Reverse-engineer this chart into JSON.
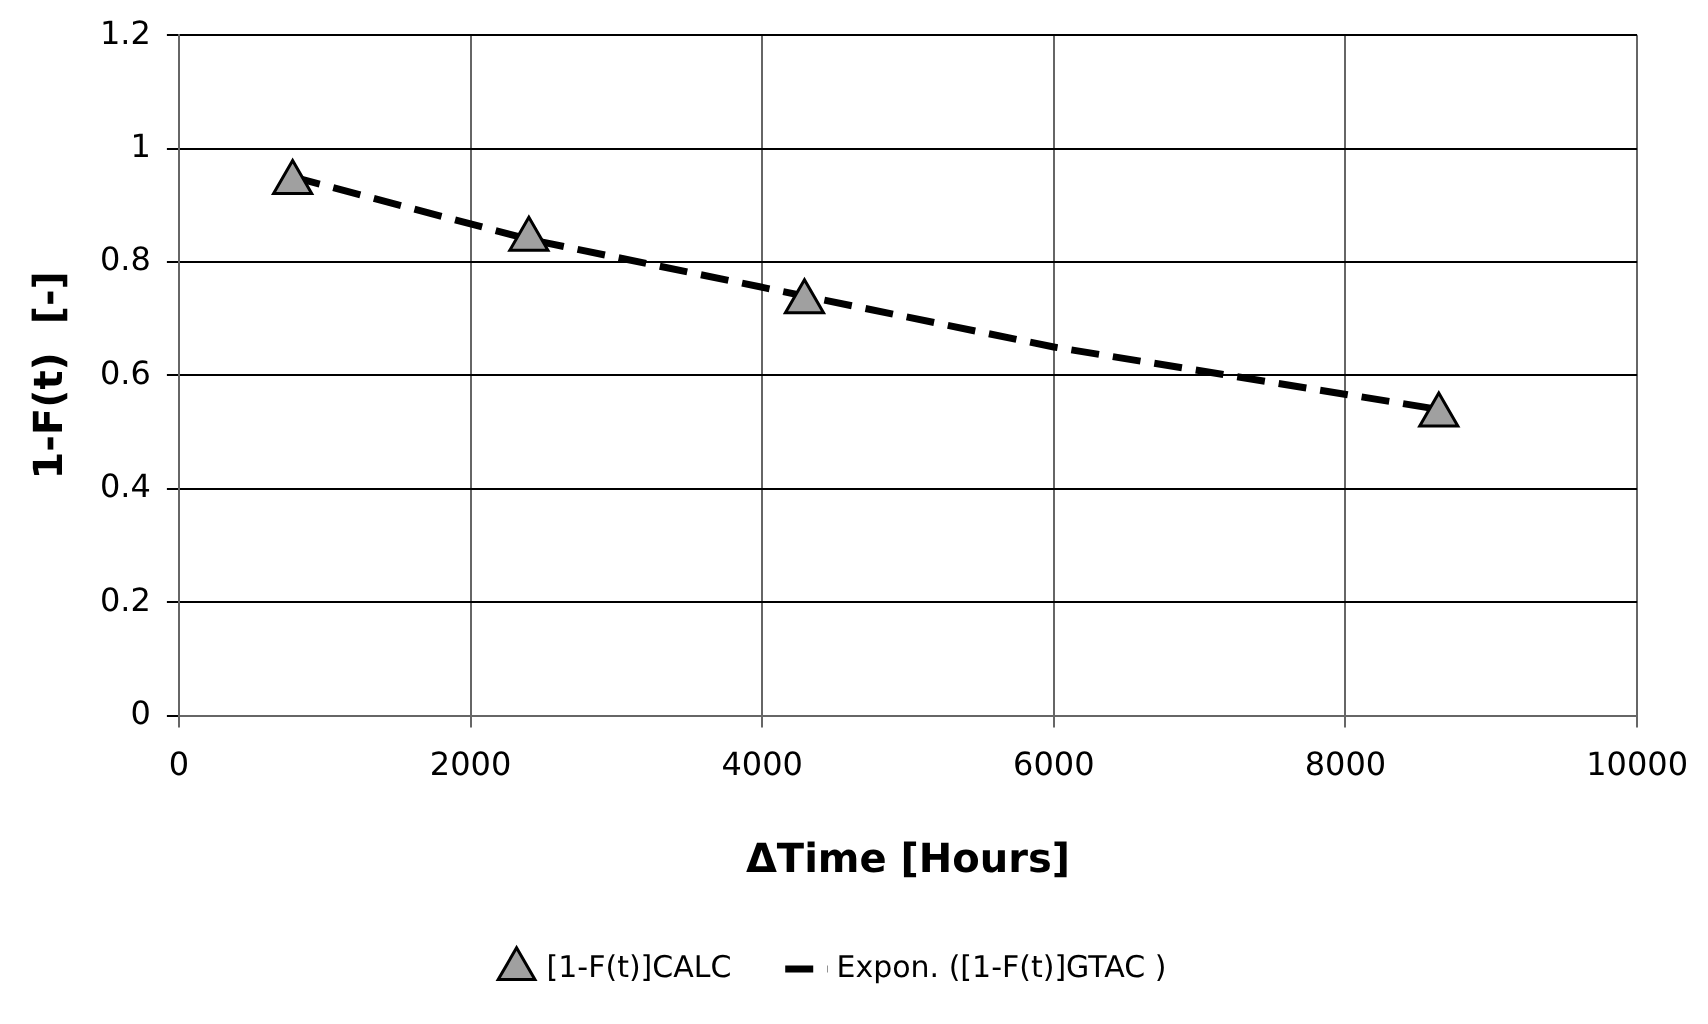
{
  "chart_data": {
    "type": "scatter",
    "xlabel": "ΔTime [Hours]",
    "ylabel": "1-F(t)  [-]",
    "xlim": [
      0,
      10000
    ],
    "xticks": [
      0,
      2000,
      4000,
      6000,
      8000,
      10000
    ],
    "ylim": [
      0,
      1.2
    ],
    "yticks": [
      0,
      0.2,
      0.4,
      0.6,
      0.8,
      1,
      1.2
    ],
    "grid": true,
    "legend": "bottom",
    "series": [
      {
        "name": "[1-F(t)]CALC",
        "type": "scatter",
        "color": "#a0a0a0",
        "marker": "triangle",
        "x": [
          780,
          2400,
          4290,
          8640
        ],
        "values": [
          0.94,
          0.84,
          0.73,
          0.53
        ]
      },
      {
        "name": "Expon. ([1-F(t)]GTAC )",
        "type": "line",
        "color": "#000000",
        "line_style": "dashed",
        "marker": "none",
        "x": [
          780,
          2400,
          4290,
          6000,
          8640
        ],
        "values": [
          0.95,
          0.84,
          0.74,
          0.65,
          0.54
        ]
      }
    ]
  }
}
